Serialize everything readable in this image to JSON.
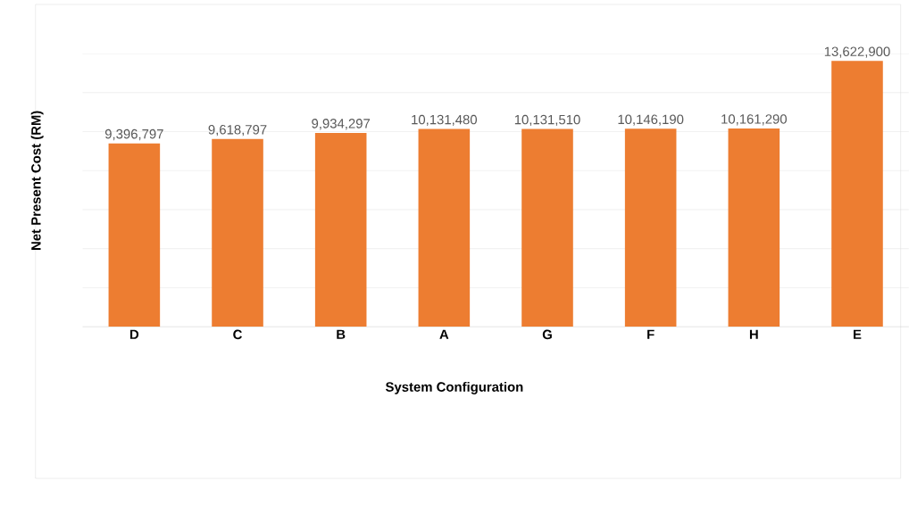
{
  "chart_data": {
    "type": "bar",
    "xlabel": "System Configuration",
    "ylabel": "Net Present Cost (RM)",
    "categories": [
      "D",
      "C",
      "B",
      "A",
      "G",
      "F",
      "H",
      "E"
    ],
    "values": [
      9396797,
      9618797,
      9934297,
      10131480,
      10131510,
      10146190,
      10161290,
      13622900
    ],
    "value_labels": [
      "9,396,797",
      "9,618,797",
      "9,934,297",
      "10,131,480",
      "10,131,510",
      "10,146,190",
      "10,161,290",
      "13,622,900"
    ],
    "color": "#ed7d31",
    "grid": "y",
    "tick_labels": "x"
  }
}
